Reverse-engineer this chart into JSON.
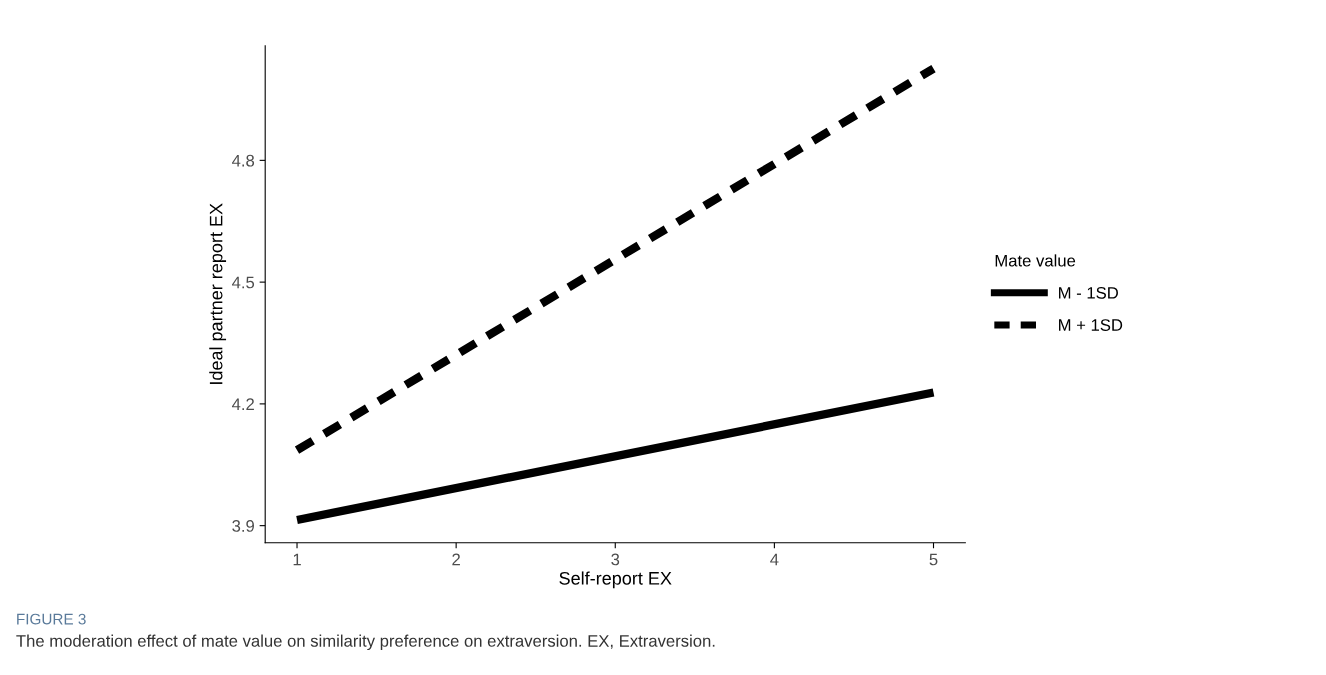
{
  "chart_data": {
    "type": "line",
    "xlabel": "Self-report EX",
    "ylabel": "Ideal partner report EX",
    "legend_title": "Mate value",
    "legend": "right",
    "x": [
      1,
      5
    ],
    "series": [
      {
        "name": "M - 1SD",
        "color": "#000000",
        "values": [
          3.914,
          4.228
        ],
        "line_style": "solid"
      },
      {
        "name": "M + 1SD",
        "color": "#000000",
        "values": [
          4.086,
          5.026
        ],
        "line_style": "dashed"
      }
    ],
    "xlim": [
      0.8,
      5.2
    ],
    "xticks": [
      1,
      2,
      3,
      4,
      5
    ],
    "ylim": [
      3.858,
      5.082
    ],
    "yticks": [
      {
        "value": 3.9,
        "label": "3.9"
      },
      {
        "value": 4.2,
        "label": "4.2"
      },
      {
        "value": 4.5,
        "label": "4.5"
      },
      {
        "value": 4.8,
        "label": "4.8"
      }
    ],
    "grid": false,
    "marker": "none",
    "annotations": [
      "FIGURE 3",
      "The moderation effect of mate value on similarity preference on extraversion. EX, Extraversion."
    ]
  }
}
